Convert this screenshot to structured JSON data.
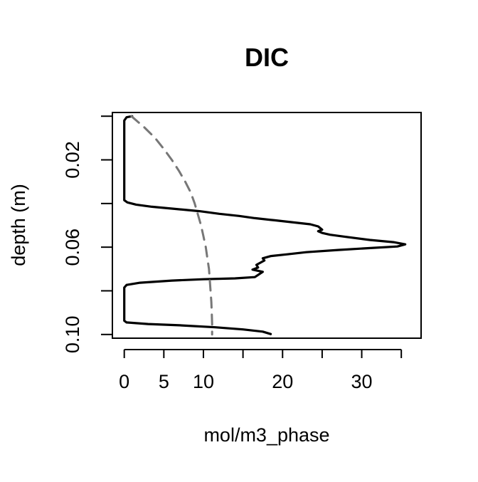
{
  "chart_data": {
    "type": "line",
    "title": "DIC",
    "xlabel": "mol/m3_phase",
    "ylabel": "depth (m)",
    "xlim": [
      -1.5,
      37.5
    ],
    "ylim": [
      0.1017,
      -0.0017
    ],
    "y_reversed": true,
    "grid": false,
    "legend": null,
    "x_ticks": [
      0,
      5,
      10,
      15,
      20,
      25,
      30,
      35
    ],
    "x_tick_labels": [
      "0",
      "5",
      "10",
      "",
      "20",
      "",
      "30",
      ""
    ],
    "y_ticks": [
      0.0,
      0.02,
      0.04,
      0.06,
      0.08,
      0.1
    ],
    "y_tick_labels": [
      "",
      "0.02",
      "",
      "0.06",
      "",
      "0.10"
    ],
    "series": [
      {
        "style": "solid",
        "color": "#000000",
        "points": [
          [
            1.0,
            0.0
          ],
          [
            0.3,
            0.0005
          ],
          [
            0.0,
            0.002
          ],
          [
            0.0,
            0.01
          ],
          [
            0.0,
            0.02
          ],
          [
            0.0,
            0.03
          ],
          [
            0.0,
            0.0385
          ],
          [
            0.4,
            0.0395
          ],
          [
            1.5,
            0.0405
          ],
          [
            3.5,
            0.0415
          ],
          [
            6.5,
            0.0425
          ],
          [
            9.5,
            0.0435
          ],
          [
            12.0,
            0.0447
          ],
          [
            14.5,
            0.0457
          ],
          [
            16.5,
            0.0467
          ],
          [
            19.0,
            0.0477
          ],
          [
            21.5,
            0.0487
          ],
          [
            23.5,
            0.0495
          ],
          [
            24.5,
            0.0505
          ],
          [
            25.0,
            0.052
          ],
          [
            24.5,
            0.0527
          ],
          [
            25.0,
            0.0535
          ],
          [
            26.0,
            0.0543
          ],
          [
            28.0,
            0.0553
          ],
          [
            31.0,
            0.0567
          ],
          [
            34.0,
            0.0577
          ],
          [
            35.5,
            0.0587
          ],
          [
            34.5,
            0.0597
          ],
          [
            31.5,
            0.0603
          ],
          [
            27.0,
            0.0613
          ],
          [
            23.0,
            0.0623
          ],
          [
            20.5,
            0.0633
          ],
          [
            18.5,
            0.0641
          ],
          [
            17.5,
            0.0651
          ],
          [
            17.7,
            0.0661
          ],
          [
            16.7,
            0.0681
          ],
          [
            16.9,
            0.0693
          ],
          [
            16.2,
            0.0703
          ],
          [
            17.5,
            0.0713
          ],
          [
            16.5,
            0.0737
          ],
          [
            14.0,
            0.0743
          ],
          [
            10.0,
            0.0747
          ],
          [
            6.0,
            0.0753
          ],
          [
            2.0,
            0.0763
          ],
          [
            0.3,
            0.0773
          ],
          [
            0.0,
            0.0785
          ],
          [
            0.0,
            0.085
          ],
          [
            0.0,
            0.0937
          ],
          [
            0.3,
            0.0945
          ],
          [
            3.0,
            0.0952
          ],
          [
            7.0,
            0.0958
          ],
          [
            11.5,
            0.0967
          ],
          [
            15.0,
            0.0977
          ],
          [
            17.5,
            0.0987
          ],
          [
            18.5,
            0.0998
          ]
        ]
      },
      {
        "style": "dashed",
        "color": "#777777",
        "points": [
          [
            0.9,
            0.0
          ],
          [
            2.5,
            0.005
          ],
          [
            3.9,
            0.01
          ],
          [
            5.0,
            0.015
          ],
          [
            6.0,
            0.02
          ],
          [
            6.9,
            0.025
          ],
          [
            7.7,
            0.03
          ],
          [
            8.4,
            0.035
          ],
          [
            8.9,
            0.04
          ],
          [
            9.3,
            0.045
          ],
          [
            9.7,
            0.05
          ],
          [
            10.0,
            0.055
          ],
          [
            10.3,
            0.06
          ],
          [
            10.5,
            0.065
          ],
          [
            10.7,
            0.07
          ],
          [
            10.8,
            0.075
          ],
          [
            10.9,
            0.08
          ],
          [
            11.0,
            0.085
          ],
          [
            11.05,
            0.09
          ],
          [
            11.1,
            0.095
          ],
          [
            11.1,
            0.1
          ]
        ]
      }
    ]
  }
}
